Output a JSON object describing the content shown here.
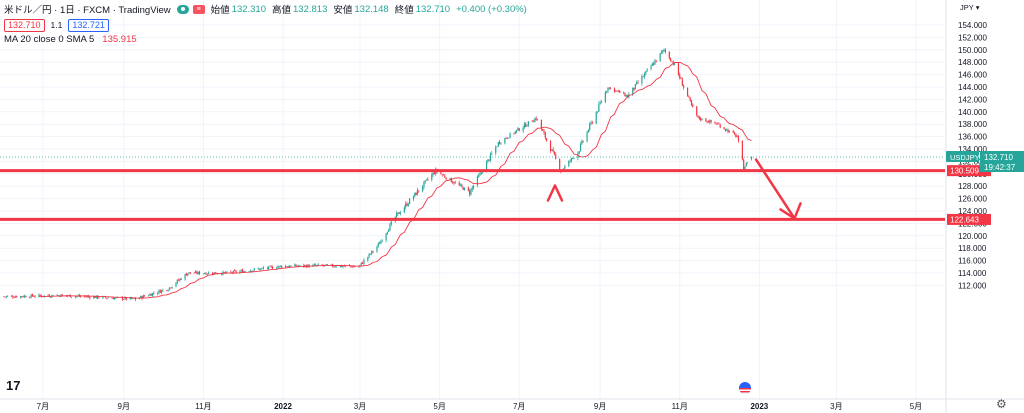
{
  "header": {
    "symbol_title": "米ドル／円 · 1日 · FXCM · TradingView",
    "open_label": "始値",
    "open_value": "132.310",
    "high_label": "高値",
    "high_value": "132.813",
    "low_label": "安値",
    "low_value": "132.148",
    "close_label": "終値",
    "close_value": "132.710",
    "change": "+0.400 (+0.30%)",
    "sell_price": "132.710",
    "spread": "1.1",
    "buy_price": "132.721",
    "badge_icon": "red-badge-icon"
  },
  "indicator": {
    "label": "MA 20 close 0 SMA 5",
    "value": "135.915",
    "color": "#f23645"
  },
  "price_scale": {
    "currency": "JPY",
    "ticks": [
      "154.000",
      "152.000",
      "150.000",
      "148.000",
      "146.000",
      "144.000",
      "142.000",
      "140.000",
      "138.000",
      "136.000",
      "134.000",
      "132.000",
      "130.000",
      "128.000",
      "126.000",
      "124.000",
      "122.000",
      "120.000",
      "118.000",
      "116.000",
      "114.000",
      "112.000"
    ]
  },
  "time_axis": {
    "labels": [
      "7月",
      "9月",
      "11月",
      "2022",
      "3月",
      "5月",
      "7月",
      "9月",
      "11月",
      "2023",
      "3月",
      "5月"
    ]
  },
  "price_tag": {
    "symbol": "USDJPY",
    "price": "132.710",
    "countdown": "19:42:37",
    "color": "#26a69a"
  },
  "horizontal_lines": [
    {
      "price_label": "130.509",
      "color": "#f23645"
    },
    {
      "price_label": "122.643",
      "color": "#f23645"
    }
  ],
  "chart_data": {
    "type": "candlestick",
    "up_color": "#26a69a",
    "down_color": "#f23645",
    "ylim": [
      111,
      155
    ],
    "levels": [
      130.509,
      122.643
    ],
    "last_close": 132.71,
    "anchors": [
      {
        "date": "2021-06-01",
        "close": 110.2
      },
      {
        "date": "2021-07-15",
        "close": 110.4
      },
      {
        "date": "2021-09-10",
        "close": 109.8
      },
      {
        "date": "2021-10-05",
        "close": 111.5
      },
      {
        "date": "2021-10-20",
        "close": 114.0
      },
      {
        "date": "2021-11-20",
        "close": 114.0
      },
      {
        "date": "2021-12-31",
        "close": 115.1
      },
      {
        "date": "2022-01-31",
        "close": 115.2
      },
      {
        "date": "2022-02-28",
        "close": 115.0
      },
      {
        "date": "2022-03-15",
        "close": 118.5
      },
      {
        "date": "2022-03-28",
        "close": 123.0
      },
      {
        "date": "2022-04-28",
        "close": 130.5
      },
      {
        "date": "2022-05-24",
        "close": 127.0
      },
      {
        "date": "2022-06-15",
        "close": 135.0
      },
      {
        "date": "2022-07-14",
        "close": 139.0
      },
      {
        "date": "2022-08-02",
        "close": 130.5
      },
      {
        "date": "2022-08-15",
        "close": 133.5
      },
      {
        "date": "2022-09-07",
        "close": 144.0
      },
      {
        "date": "2022-09-22",
        "close": 142.5
      },
      {
        "date": "2022-10-20",
        "close": 150.0
      },
      {
        "date": "2022-10-28",
        "close": 147.5
      },
      {
        "date": "2022-11-10",
        "close": 141.0
      },
      {
        "date": "2022-11-15",
        "close": 139.0
      },
      {
        "date": "2022-11-30",
        "close": 138.0
      },
      {
        "date": "2022-12-15",
        "close": 136.0
      },
      {
        "date": "2022-12-20",
        "close": 131.0
      },
      {
        "date": "2022-12-26",
        "close": 132.71
      }
    ],
    "annotations": [
      {
        "type": "arrow-up",
        "color": "#f23645"
      },
      {
        "type": "arrow-down",
        "from_date": "2022-12-31",
        "from_price": 132.3,
        "to_date": "2023-01-31",
        "to_price": 122.8,
        "color": "#f23645"
      }
    ]
  }
}
